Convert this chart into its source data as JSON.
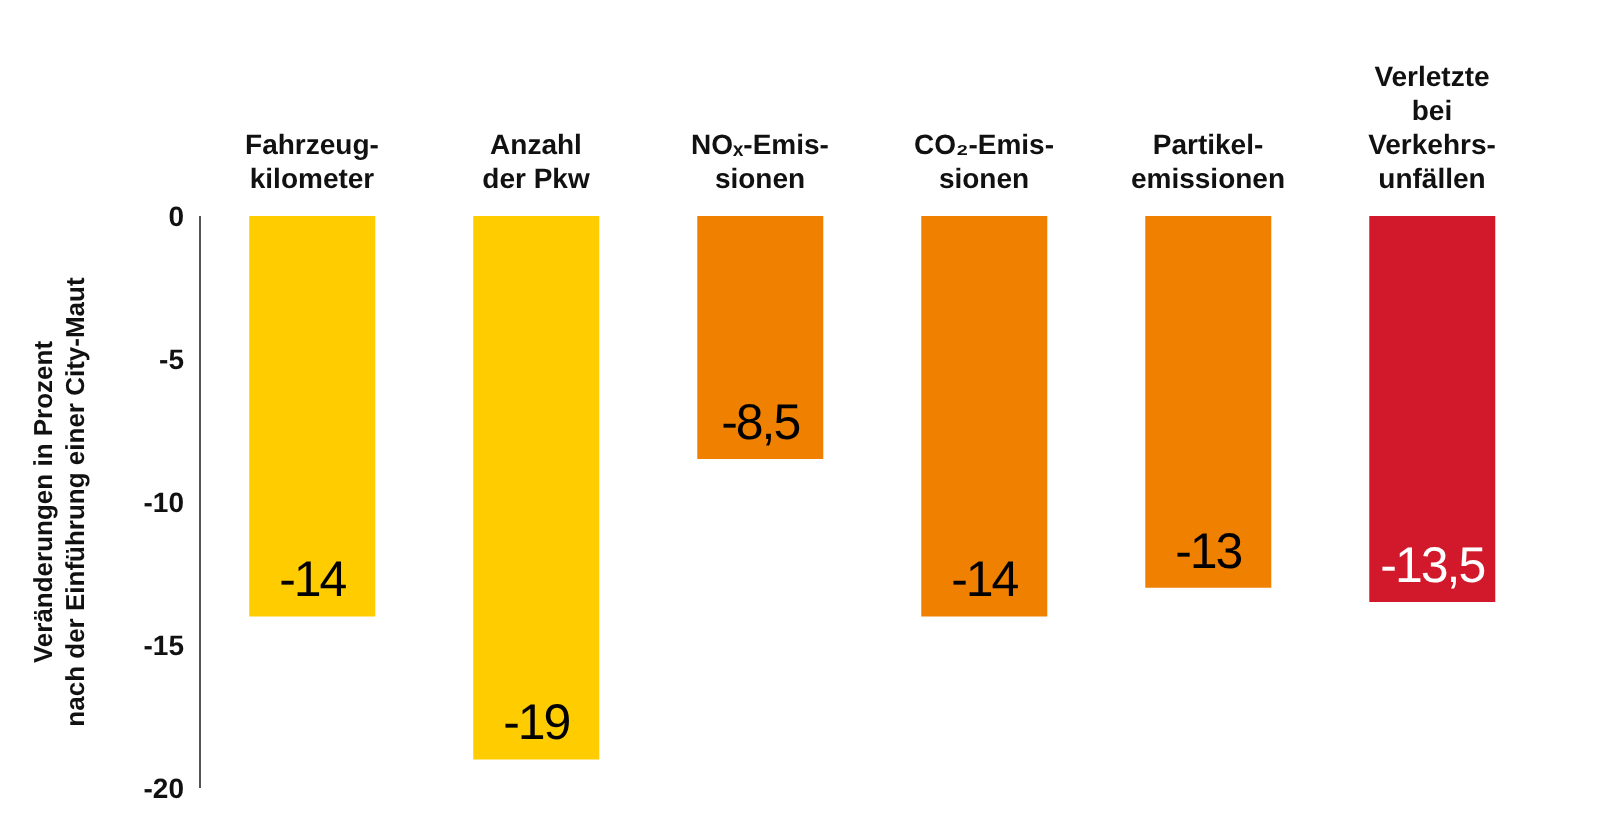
{
  "chart_data": {
    "type": "bar",
    "ylabel": "Veränderungen in Prozent\nnach der Einführung einer City-Maut",
    "categories": [
      "Fahrzeug-\nkilometer",
      "Anzahl\nder Pkw",
      "NOₓ-Emis-\nsionen",
      "CO₂-Emis-\nsionen",
      "Partikel-\nemissionen",
      "Verletzte\nbei\nVerkehrs-\nunfällen"
    ],
    "values": [
      -14,
      -19,
      -8.5,
      -14,
      -13,
      -13.5
    ],
    "value_labels": [
      "-14",
      "-19",
      "-8,5",
      "-14",
      "-13",
      "-13,5"
    ],
    "colors": [
      "#ffcc00",
      "#ffcc00",
      "#f08000",
      "#f08000",
      "#f08000",
      "#d2182b"
    ],
    "ylim": [
      -20,
      0
    ],
    "yticks": [
      0,
      -5,
      -10,
      -15,
      -20
    ],
    "grid": false,
    "legend": false
  }
}
